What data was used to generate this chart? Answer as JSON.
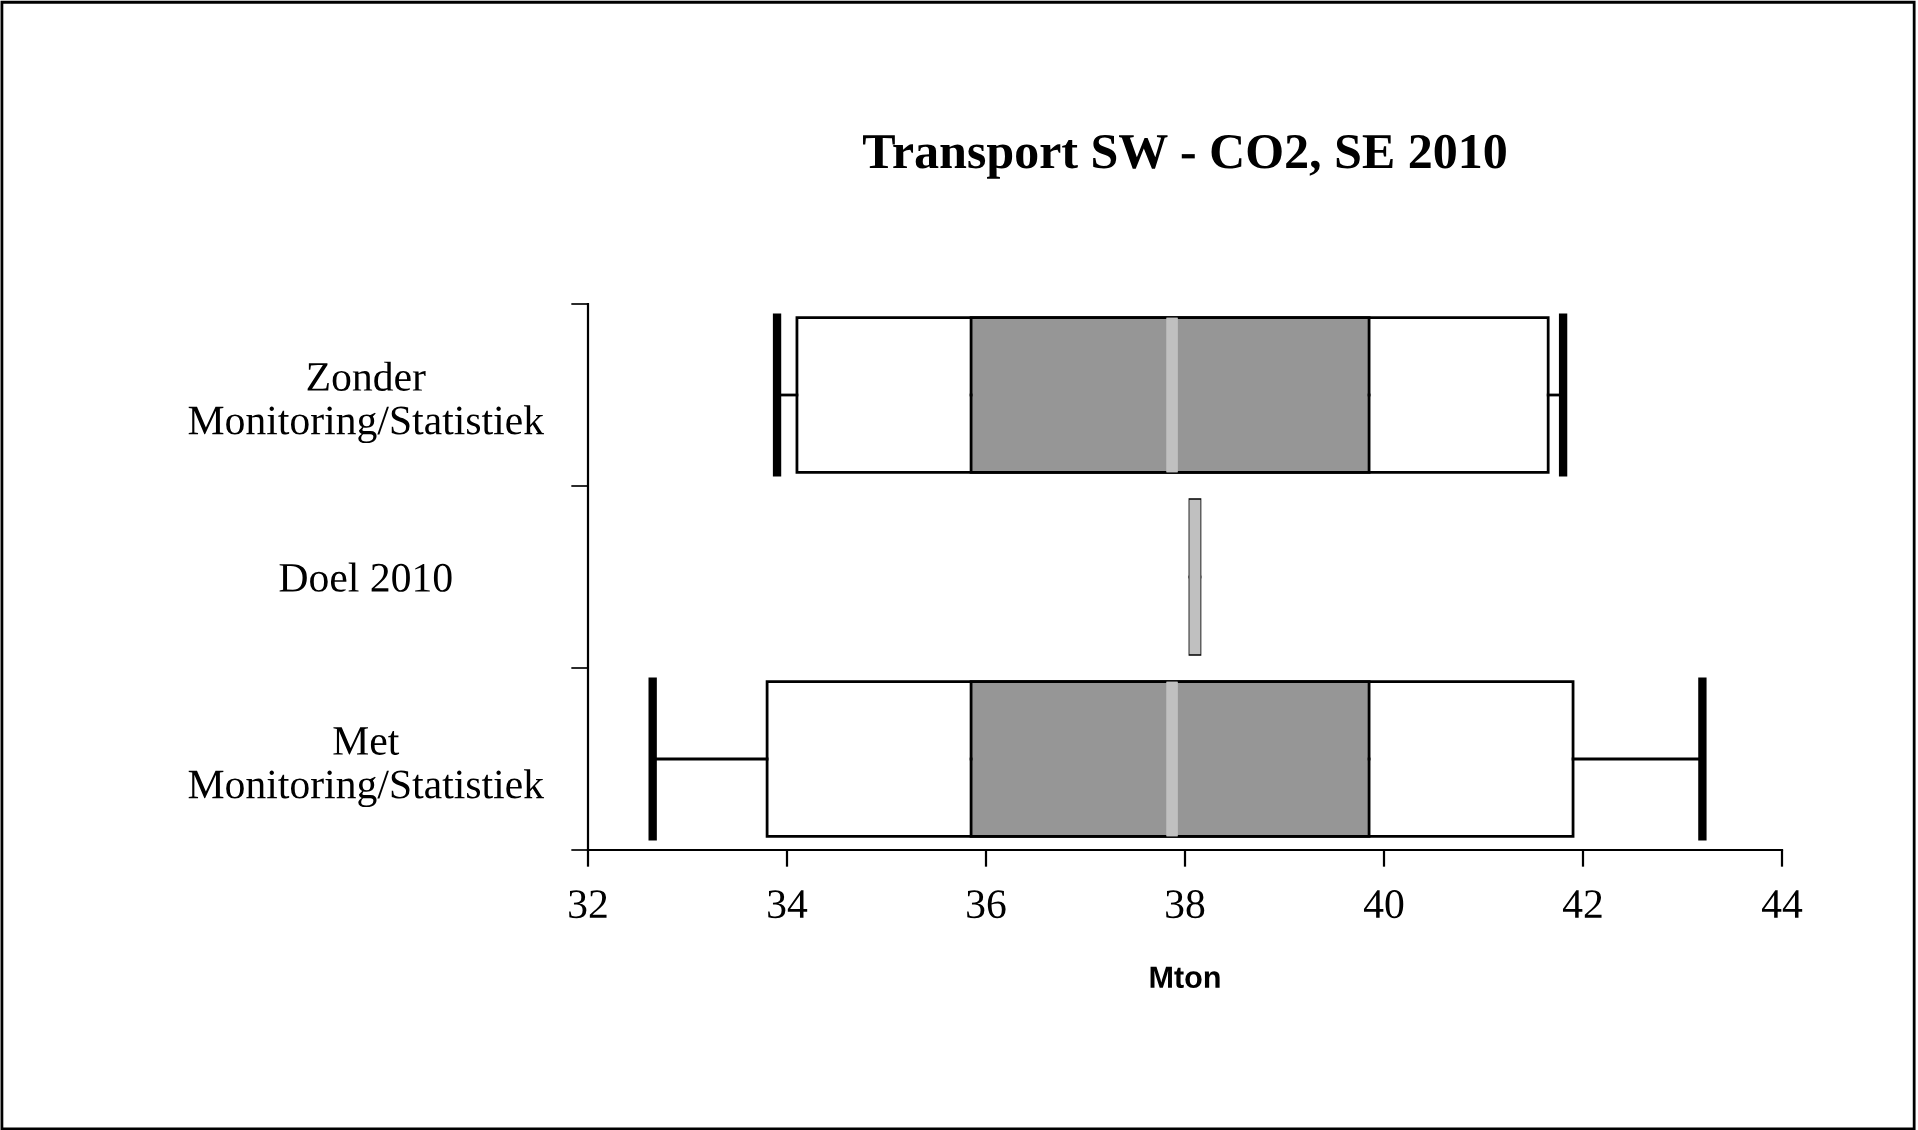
{
  "chart_data": {
    "type": "box",
    "orientation": "horizontal",
    "title": "Transport SW - CO2, SE 2010",
    "xlabel": "Mton",
    "categories": [
      "Zonder\nMonitoring/Statistiek",
      "Doel 2010",
      "Met\nMonitoring/Statistiek"
    ],
    "series": [
      {
        "color": "#ffffff",
        "boxes": [
          {
            "low": 33.9,
            "q1": 34.1,
            "median": 37.87,
            "q3": 41.65,
            "high": 41.8
          },
          null,
          {
            "low": 32.65,
            "q1": 33.8,
            "median": 37.87,
            "q3": 41.9,
            "high": 43.2
          }
        ]
      },
      {
        "color": "#969696",
        "boxes": [
          {
            "low": 35.85,
            "q1": 35.85,
            "median": 37.87,
            "q3": 39.85,
            "high": 39.85
          },
          null,
          {
            "low": 35.85,
            "q1": 35.85,
            "median": 37.87,
            "q3": 39.85,
            "high": 39.85
          }
        ]
      },
      {
        "color": "#c0c0c0",
        "boxes": [
          null,
          {
            "low": 38.05,
            "q1": 38.05,
            "median": 38.1,
            "q3": 38.15,
            "high": 38.15
          },
          null
        ]
      }
    ],
    "xlim": [
      32,
      44
    ],
    "xticks": [
      32,
      34,
      36,
      38,
      40,
      42,
      44
    ],
    "grid": false,
    "legend": false
  }
}
